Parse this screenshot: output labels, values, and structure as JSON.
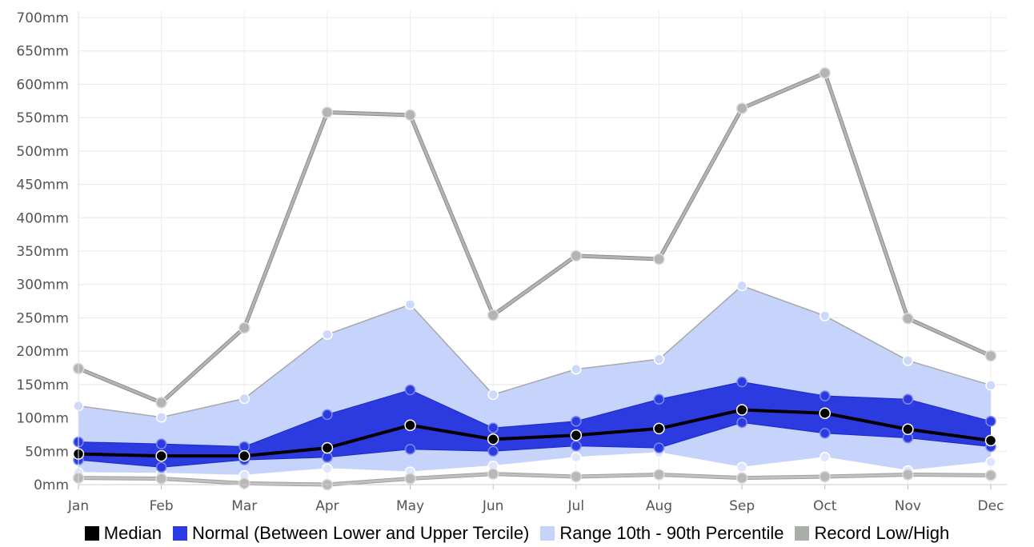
{
  "chart_data": {
    "type": "line",
    "categories": [
      "Jan",
      "Feb",
      "Mar",
      "Apr",
      "May",
      "Jun",
      "Jul",
      "Aug",
      "Sep",
      "Oct",
      "Nov",
      "Dec"
    ],
    "y_tick_labels": [
      "0mm",
      "50mm",
      "100mm",
      "150mm",
      "200mm",
      "250mm",
      "300mm",
      "350mm",
      "400mm",
      "450mm",
      "500mm",
      "550mm",
      "600mm",
      "650mm",
      "700mm"
    ],
    "ylim": [
      0,
      700
    ],
    "y_unit": "mm",
    "grid": true,
    "legend_position": "bottom",
    "series": [
      {
        "name": "Record Low/High",
        "kind": "record_high",
        "color": "#aaaaaa",
        "values": [
          174,
          123,
          235,
          558,
          554,
          254,
          343,
          338,
          564,
          617,
          249,
          193
        ]
      },
      {
        "name": "Record Low/High",
        "kind": "record_low",
        "color": "#aaaaaa",
        "values": [
          10,
          9,
          2,
          0,
          9,
          16,
          12,
          15,
          10,
          12,
          15,
          14
        ]
      },
      {
        "name": "Range 10th - 90th Percentile",
        "kind": "p90",
        "color": "#c6d3fa",
        "values": [
          118,
          101,
          129,
          225,
          270,
          135,
          173,
          188,
          298,
          253,
          186,
          149
        ]
      },
      {
        "name": "Range 10th - 90th Percentile",
        "kind": "p10",
        "color": "#c6d3fa",
        "values": [
          18,
          17,
          14,
          24,
          19,
          28,
          41,
          48,
          26,
          41,
          21,
          34
        ]
      },
      {
        "name": "Normal (Between Lower and Upper Tercile)",
        "kind": "upper_tercile",
        "color": "#2b3be0",
        "values": [
          64,
          61,
          57,
          105,
          142,
          85,
          95,
          128,
          154,
          133,
          128,
          95
        ]
      },
      {
        "name": "Normal (Between Lower and Upper Tercile)",
        "kind": "lower_tercile",
        "color": "#2b3be0",
        "values": [
          37,
          26,
          37,
          41,
          53,
          50,
          58,
          55,
          93,
          77,
          70,
          57
        ]
      },
      {
        "name": "Median",
        "kind": "median",
        "color": "#000000",
        "values": [
          46,
          43,
          43,
          55,
          89,
          68,
          74,
          84,
          112,
          107,
          83,
          66
        ]
      }
    ]
  },
  "legend": [
    {
      "label": "Median",
      "color": "#000000"
    },
    {
      "label": "Normal (Between Lower and Upper Tercile)",
      "color": "#2b3be0"
    },
    {
      "label": "Range 10th - 90th Percentile",
      "color": "#c6d3fa"
    },
    {
      "label": "Record Low/High",
      "color": "#a9aea9"
    }
  ]
}
